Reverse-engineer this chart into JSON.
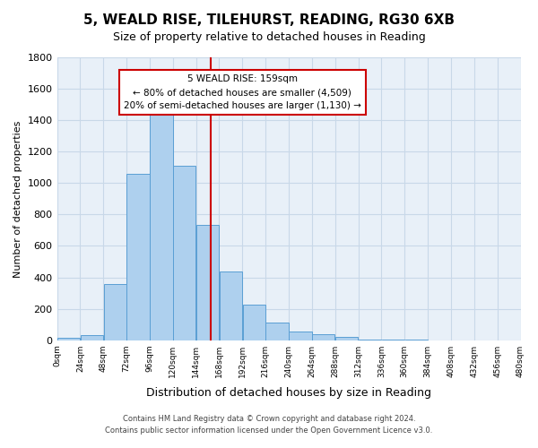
{
  "title": "5, WEALD RISE, TILEHURST, READING, RG30 6XB",
  "subtitle": "Size of property relative to detached houses in Reading",
  "xlabel": "Distribution of detached houses by size in Reading",
  "ylabel": "Number of detached properties",
  "bar_color": "#aed0ee",
  "bar_edge_color": "#5a9fd4",
  "background_color": "#ffffff",
  "ax_background_color": "#e8f0f8",
  "grid_color": "#c8d8e8",
  "bin_edges": [
    0,
    24,
    48,
    72,
    96,
    120,
    144,
    168,
    192,
    216,
    240,
    264,
    288,
    312,
    336,
    360,
    384,
    408,
    432,
    456,
    480
  ],
  "counts": [
    15,
    35,
    355,
    1060,
    1455,
    1110,
    735,
    435,
    225,
    110,
    55,
    40,
    20,
    5,
    2,
    1,
    0,
    0,
    0,
    0
  ],
  "vline_x": 159,
  "vline_color": "#cc0000",
  "annotation_title": "5 WEALD RISE: 159sqm",
  "annotation_line1": "← 80% of detached houses are smaller (4,509)",
  "annotation_line2": "20% of semi-detached houses are larger (1,130) →",
  "annotation_box_color": "#ffffff",
  "annotation_box_edge": "#cc0000",
  "footnote1": "Contains HM Land Registry data © Crown copyright and database right 2024.",
  "footnote2": "Contains public sector information licensed under the Open Government Licence v3.0.",
  "ylim": [
    0,
    1800
  ],
  "yticks": [
    0,
    200,
    400,
    600,
    800,
    1000,
    1200,
    1400,
    1600,
    1800
  ],
  "xtick_labels": [
    "0sqm",
    "24sqm",
    "48sqm",
    "72sqm",
    "96sqm",
    "120sqm",
    "144sqm",
    "168sqm",
    "192sqm",
    "216sqm",
    "240sqm",
    "264sqm",
    "288sqm",
    "312sqm",
    "336sqm",
    "360sqm",
    "384sqm",
    "408sqm",
    "432sqm",
    "456sqm",
    "480sqm"
  ]
}
